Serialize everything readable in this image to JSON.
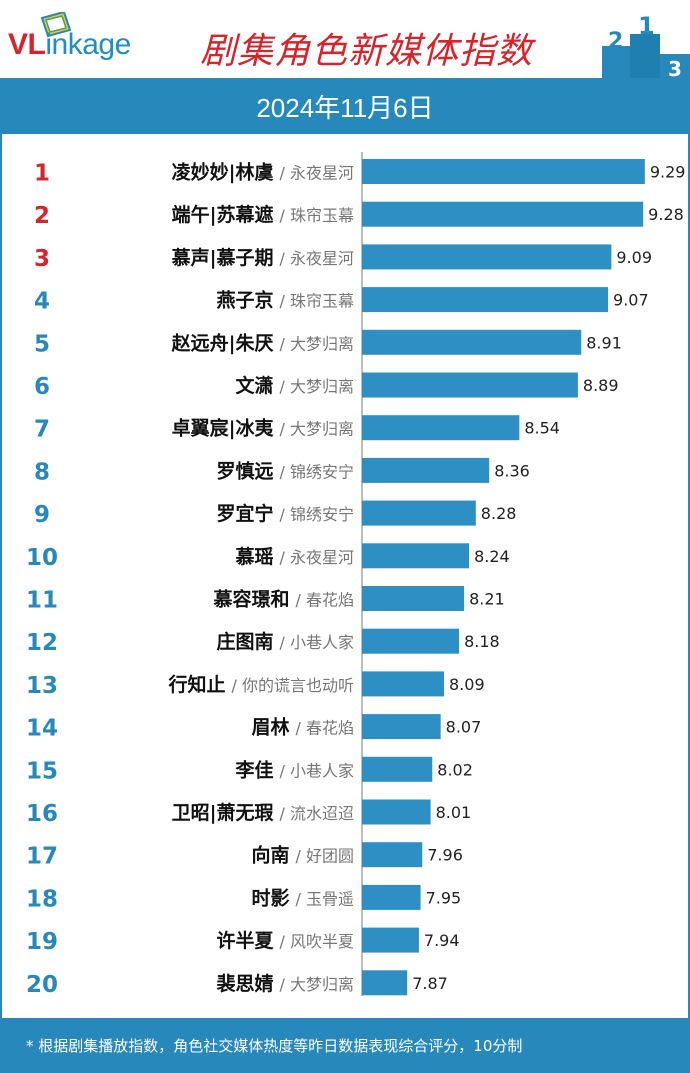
{
  "header": {
    "logo_v": "VL",
    "logo_rest": "inkage",
    "title": "剧集角色新媒体指数",
    "podium_digits": [
      "2",
      "1",
      "3"
    ]
  },
  "date": "2024年11月6日",
  "footer": {
    "note": "* 根据剧集播放指数，角色社交媒体热度等昨日数据表现综合评分，10分制"
  },
  "colors": {
    "bar": "#2d8fc4",
    "top_rank": "#d8232a",
    "rank": "#2789bb",
    "band": "#2789bb"
  },
  "chart_data": {
    "type": "bar",
    "orientation": "horizontal",
    "xlim": [
      7.6,
      9.5
    ],
    "rows": [
      {
        "rank": "1",
        "role": "凌妙妙|林虞",
        "show": "/ 永夜星河",
        "value": 9.29
      },
      {
        "rank": "2",
        "role": "端午|苏幕遮",
        "show": "/ 珠帘玉幕",
        "value": 9.28
      },
      {
        "rank": "3",
        "role": "慕声|慕子期",
        "show": "/ 永夜星河",
        "value": 9.09
      },
      {
        "rank": "4",
        "role": "燕子京",
        "show": "/ 珠帘玉幕",
        "value": 9.07
      },
      {
        "rank": "5",
        "role": "赵远舟|朱厌",
        "show": "/ 大梦归离",
        "value": 8.91
      },
      {
        "rank": "6",
        "role": "文潇",
        "show": "/ 大梦归离",
        "value": 8.89
      },
      {
        "rank": "7",
        "role": "卓翼宸|冰夷",
        "show": "/ 大梦归离",
        "value": 8.54
      },
      {
        "rank": "8",
        "role": "罗慎远",
        "show": "/ 锦绣安宁",
        "value": 8.36
      },
      {
        "rank": "9",
        "role": "罗宜宁",
        "show": "/ 锦绣安宁",
        "value": 8.28
      },
      {
        "rank": "10",
        "role": "慕瑶",
        "show": "/ 永夜星河",
        "value": 8.24
      },
      {
        "rank": "11",
        "role": "慕容璟和",
        "show": "/ 春花焰",
        "value": 8.21
      },
      {
        "rank": "12",
        "role": "庄图南",
        "show": "/ 小巷人家",
        "value": 8.18
      },
      {
        "rank": "13",
        "role": "行知止",
        "show": "/ 你的谎言也动听",
        "value": 8.09
      },
      {
        "rank": "14",
        "role": "眉林",
        "show": "/ 春花焰",
        "value": 8.07
      },
      {
        "rank": "15",
        "role": "李佳",
        "show": "/ 小巷人家",
        "value": 8.02
      },
      {
        "rank": "16",
        "role": "卫昭|萧无瑕",
        "show": "/ 流水迢迢",
        "value": 8.01
      },
      {
        "rank": "17",
        "role": "向南",
        "show": "/ 好团圆",
        "value": 7.96
      },
      {
        "rank": "18",
        "role": "时影",
        "show": "/ 玉骨遥",
        "value": 7.95
      },
      {
        "rank": "19",
        "role": "许半夏",
        "show": "/ 风吹半夏",
        "value": 7.94
      },
      {
        "rank": "20",
        "role": "裴思婧",
        "show": "/ 大梦归离",
        "value": 7.87
      }
    ]
  }
}
